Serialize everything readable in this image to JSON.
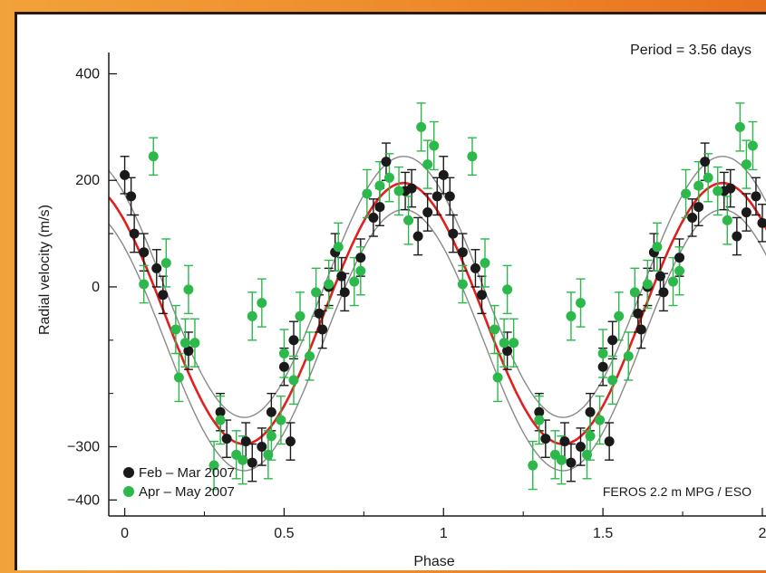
{
  "chart_data": {
    "type": "scatter",
    "ylabel": "Radial velocity (m/s)",
    "xlabel": "Phase",
    "xlim": [
      -0.05,
      2.02
    ],
    "ylim": [
      -430,
      440
    ],
    "xticks": [
      {
        "v": 0,
        "label": "0"
      },
      {
        "v": 0.5,
        "label": "0.5"
      },
      {
        "v": 1,
        "label": "1"
      },
      {
        "v": 1.5,
        "label": "1.5"
      },
      {
        "v": 2,
        "label": "2"
      }
    ],
    "xminor": [
      0.25,
      0.75,
      1.25,
      1.75
    ],
    "yticks": [
      {
        "v": 400,
        "label": "400"
      },
      {
        "v": 200,
        "label": "200"
      },
      {
        "v": 0,
        "label": "0"
      },
      {
        "v": -300,
        "label": "−300"
      },
      {
        "v": -400,
        "label": "−400"
      }
    ],
    "yminor": [
      100,
      -100,
      -200
    ],
    "grid": false,
    "legend_position": "bottom-left",
    "annotations": {
      "period": "Period = 3.56 days",
      "instrument": "FEROS 2.2 m MPG / ESO"
    },
    "model": {
      "period_days": 3.56,
      "fit": {
        "amplitude": 245,
        "phase_of_max": 0.875,
        "offset": -50,
        "color": "#e02020"
      },
      "bounds": [
        {
          "amplitude": 245,
          "phase_of_max": 0.875,
          "offset": 0,
          "color": "#8a8a8a"
        },
        {
          "amplitude": 245,
          "phase_of_max": 0.875,
          "offset": -100,
          "color": "#8a8a8a"
        }
      ]
    },
    "series": [
      {
        "name": "Feb – Mar 2007",
        "color": "#1a1a1a",
        "points": [
          {
            "x": 0.0,
            "y": 210,
            "e": 35
          },
          {
            "x": 0.02,
            "y": 170,
            "e": 35
          },
          {
            "x": 0.03,
            "y": 100,
            "e": 35
          },
          {
            "x": 0.06,
            "y": 65,
            "e": 35
          },
          {
            "x": 0.1,
            "y": 35,
            "e": 35
          },
          {
            "x": 0.12,
            "y": -15,
            "e": 35
          },
          {
            "x": 0.2,
            "y": -120,
            "e": 35
          },
          {
            "x": 0.3,
            "y": -235,
            "e": 35
          },
          {
            "x": 0.32,
            "y": -285,
            "e": 35
          },
          {
            "x": 0.38,
            "y": -290,
            "e": 35
          },
          {
            "x": 0.4,
            "y": -330,
            "e": 35
          },
          {
            "x": 0.43,
            "y": -300,
            "e": 35
          },
          {
            "x": 0.46,
            "y": -235,
            "e": 35
          },
          {
            "x": 0.5,
            "y": -150,
            "e": 35
          },
          {
            "x": 0.52,
            "y": -290,
            "e": 35
          },
          {
            "x": 0.53,
            "y": -100,
            "e": 35
          },
          {
            "x": 0.61,
            "y": -50,
            "e": 35
          },
          {
            "x": 0.62,
            "y": -80,
            "e": 35
          },
          {
            "x": 0.64,
            "y": 0,
            "e": 35
          },
          {
            "x": 0.66,
            "y": 65,
            "e": 35
          },
          {
            "x": 0.68,
            "y": 20,
            "e": 35
          },
          {
            "x": 0.69,
            "y": -10,
            "e": 35
          },
          {
            "x": 0.74,
            "y": 55,
            "e": 35
          },
          {
            "x": 0.78,
            "y": 130,
            "e": 35
          },
          {
            "x": 0.8,
            "y": 150,
            "e": 35
          },
          {
            "x": 0.82,
            "y": 235,
            "e": 35
          },
          {
            "x": 0.88,
            "y": 180,
            "e": 35
          },
          {
            "x": 0.9,
            "y": 185,
            "e": 35
          },
          {
            "x": 0.92,
            "y": 95,
            "e": 35
          },
          {
            "x": 0.95,
            "y": 140,
            "e": 35
          },
          {
            "x": 0.98,
            "y": 170,
            "e": 35
          },
          {
            "x": 1.0,
            "y": 210,
            "e": 35
          },
          {
            "x": 1.02,
            "y": 170,
            "e": 35
          },
          {
            "x": 1.03,
            "y": 100,
            "e": 35
          },
          {
            "x": 1.06,
            "y": 65,
            "e": 35
          },
          {
            "x": 1.1,
            "y": 35,
            "e": 35
          },
          {
            "x": 1.12,
            "y": -15,
            "e": 35
          },
          {
            "x": 1.2,
            "y": -120,
            "e": 35
          },
          {
            "x": 1.3,
            "y": -235,
            "e": 35
          },
          {
            "x": 1.32,
            "y": -285,
            "e": 35
          },
          {
            "x": 1.38,
            "y": -290,
            "e": 35
          },
          {
            "x": 1.4,
            "y": -330,
            "e": 35
          },
          {
            "x": 1.43,
            "y": -300,
            "e": 35
          },
          {
            "x": 1.46,
            "y": -235,
            "e": 35
          },
          {
            "x": 1.5,
            "y": -150,
            "e": 35
          },
          {
            "x": 1.52,
            "y": -290,
            "e": 35
          },
          {
            "x": 1.53,
            "y": -100,
            "e": 35
          },
          {
            "x": 1.61,
            "y": -50,
            "e": 35
          },
          {
            "x": 1.62,
            "y": -80,
            "e": 35
          },
          {
            "x": 1.64,
            "y": 0,
            "e": 35
          },
          {
            "x": 1.66,
            "y": 65,
            "e": 35
          },
          {
            "x": 1.68,
            "y": 20,
            "e": 35
          },
          {
            "x": 1.69,
            "y": -10,
            "e": 35
          },
          {
            "x": 1.74,
            "y": 55,
            "e": 35
          },
          {
            "x": 1.78,
            "y": 130,
            "e": 35
          },
          {
            "x": 1.8,
            "y": 150,
            "e": 35
          },
          {
            "x": 1.82,
            "y": 235,
            "e": 35
          },
          {
            "x": 1.88,
            "y": 180,
            "e": 35
          },
          {
            "x": 1.9,
            "y": 185,
            "e": 35
          },
          {
            "x": 1.92,
            "y": 95,
            "e": 35
          },
          {
            "x": 1.95,
            "y": 140,
            "e": 35
          },
          {
            "x": 1.98,
            "y": 170,
            "e": 35
          },
          {
            "x": 2.0,
            "y": 120,
            "e": 35
          }
        ]
      },
      {
        "name": "Apr – May 2007",
        "color": "#2cb84a",
        "points": [
          {
            "x": 0.09,
            "y": 245,
            "e": 35
          },
          {
            "x": 0.06,
            "y": 5,
            "e": 35
          },
          {
            "x": 0.13,
            "y": 45,
            "e": 45
          },
          {
            "x": 0.16,
            "y": -80,
            "e": 45
          },
          {
            "x": 0.17,
            "y": -170,
            "e": 45
          },
          {
            "x": 0.19,
            "y": -105,
            "e": 45
          },
          {
            "x": 0.2,
            "y": -5,
            "e": 45
          },
          {
            "x": 0.22,
            "y": -105,
            "e": 45
          },
          {
            "x": 0.28,
            "y": -335,
            "e": 45
          },
          {
            "x": 0.3,
            "y": -250,
            "e": 45
          },
          {
            "x": 0.35,
            "y": -315,
            "e": 45
          },
          {
            "x": 0.37,
            "y": -325,
            "e": 45
          },
          {
            "x": 0.4,
            "y": -55,
            "e": 45
          },
          {
            "x": 0.43,
            "y": -30,
            "e": 45
          },
          {
            "x": 0.45,
            "y": -315,
            "e": 45
          },
          {
            "x": 0.46,
            "y": -280,
            "e": 45
          },
          {
            "x": 0.49,
            "y": -250,
            "e": 45
          },
          {
            "x": 0.5,
            "y": -125,
            "e": 45
          },
          {
            "x": 0.53,
            "y": -175,
            "e": 45
          },
          {
            "x": 0.55,
            "y": -55,
            "e": 45
          },
          {
            "x": 0.58,
            "y": -130,
            "e": 45
          },
          {
            "x": 0.6,
            "y": -10,
            "e": 45
          },
          {
            "x": 0.64,
            "y": 5,
            "e": 45
          },
          {
            "x": 0.67,
            "y": 75,
            "e": 45
          },
          {
            "x": 0.72,
            "y": 10,
            "e": 45
          },
          {
            "x": 0.74,
            "y": 30,
            "e": 45
          },
          {
            "x": 0.76,
            "y": 175,
            "e": 45
          },
          {
            "x": 0.8,
            "y": 190,
            "e": 45
          },
          {
            "x": 0.83,
            "y": 205,
            "e": 45
          },
          {
            "x": 0.86,
            "y": 180,
            "e": 45
          },
          {
            "x": 0.89,
            "y": 125,
            "e": 45
          },
          {
            "x": 0.93,
            "y": 300,
            "e": 45
          },
          {
            "x": 0.95,
            "y": 230,
            "e": 45
          },
          {
            "x": 0.97,
            "y": 265,
            "e": 45
          },
          {
            "x": 1.09,
            "y": 245,
            "e": 35
          },
          {
            "x": 1.06,
            "y": 5,
            "e": 35
          },
          {
            "x": 1.13,
            "y": 45,
            "e": 45
          },
          {
            "x": 1.16,
            "y": -80,
            "e": 45
          },
          {
            "x": 1.17,
            "y": -170,
            "e": 45
          },
          {
            "x": 1.19,
            "y": -105,
            "e": 45
          },
          {
            "x": 1.2,
            "y": -5,
            "e": 45
          },
          {
            "x": 1.22,
            "y": -105,
            "e": 45
          },
          {
            "x": 1.28,
            "y": -335,
            "e": 45
          },
          {
            "x": 1.3,
            "y": -250,
            "e": 45
          },
          {
            "x": 1.35,
            "y": -315,
            "e": 45
          },
          {
            "x": 1.37,
            "y": -325,
            "e": 45
          },
          {
            "x": 1.4,
            "y": -55,
            "e": 45
          },
          {
            "x": 1.43,
            "y": -30,
            "e": 45
          },
          {
            "x": 1.45,
            "y": -315,
            "e": 45
          },
          {
            "x": 1.46,
            "y": -280,
            "e": 45
          },
          {
            "x": 1.49,
            "y": -250,
            "e": 45
          },
          {
            "x": 1.5,
            "y": -125,
            "e": 45
          },
          {
            "x": 1.53,
            "y": -175,
            "e": 45
          },
          {
            "x": 1.55,
            "y": -55,
            "e": 45
          },
          {
            "x": 1.58,
            "y": -130,
            "e": 45
          },
          {
            "x": 1.6,
            "y": -10,
            "e": 45
          },
          {
            "x": 1.64,
            "y": 5,
            "e": 45
          },
          {
            "x": 1.67,
            "y": 75,
            "e": 45
          },
          {
            "x": 1.72,
            "y": 10,
            "e": 45
          },
          {
            "x": 1.74,
            "y": 30,
            "e": 45
          },
          {
            "x": 1.76,
            "y": 175,
            "e": 45
          },
          {
            "x": 1.8,
            "y": 190,
            "e": 45
          },
          {
            "x": 1.83,
            "y": 205,
            "e": 45
          },
          {
            "x": 1.86,
            "y": 180,
            "e": 45
          },
          {
            "x": 1.89,
            "y": 125,
            "e": 45
          },
          {
            "x": 1.93,
            "y": 300,
            "e": 45
          },
          {
            "x": 1.95,
            "y": 230,
            "e": 45
          },
          {
            "x": 1.97,
            "y": 265,
            "e": 45
          }
        ]
      }
    ]
  }
}
